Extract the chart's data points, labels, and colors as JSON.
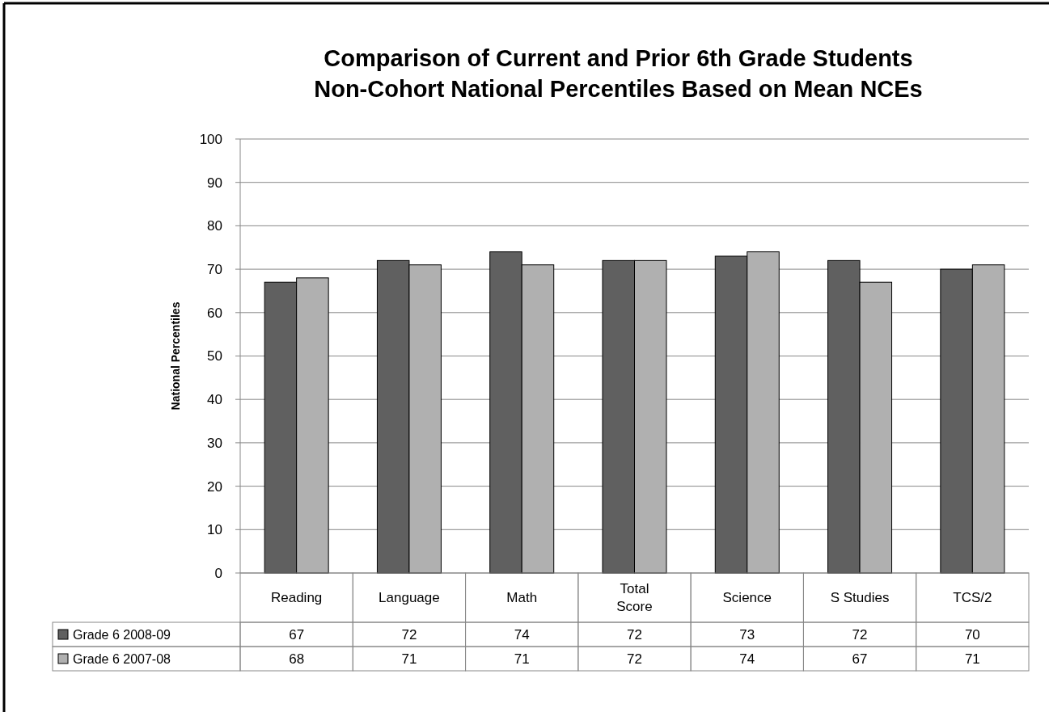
{
  "chart_data": {
    "type": "bar",
    "title": "Comparison of Current and Prior 6th Grade Students Non-Cohort National Percentiles Based on Mean NCEs",
    "ylabel": "National Percentiles",
    "categories": [
      "Reading",
      "Language",
      "Math",
      "Total Score",
      "Science",
      "S Studies",
      "TCS/2"
    ],
    "series": [
      {
        "name": "Grade 6 2008-09",
        "color": "#606060",
        "values": [
          67,
          72,
          74,
          72,
          73,
          72,
          70
        ]
      },
      {
        "name": "Grade 6 2007-08",
        "color": "#b0b0b0",
        "values": [
          68,
          71,
          71,
          72,
          74,
          67,
          71
        ]
      }
    ],
    "ylim": [
      0,
      100
    ],
    "yticks": [
      0,
      10,
      20,
      30,
      40,
      50,
      60,
      70,
      80,
      90,
      100
    ],
    "grid": "y",
    "legend": "bottom",
    "data_labels": true
  }
}
